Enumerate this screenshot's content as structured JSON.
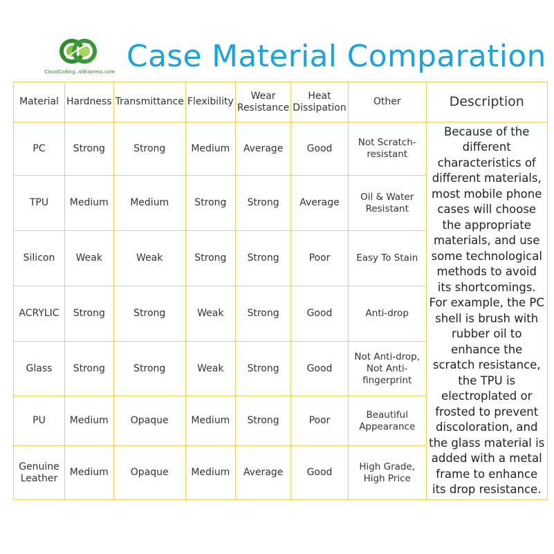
{
  "logo": {
    "text": "CloudCoding..aliExpress.com",
    "colors": {
      "outer": "#2e8b2e",
      "inner": "#8cc63f"
    }
  },
  "title": "Case Material Comparation",
  "colors": {
    "title": "#1aa3dc",
    "grid": "#f0cc5a",
    "text": "#333333"
  },
  "table": {
    "headers": [
      "Material",
      "Hardness",
      "Transmittance",
      "Flexibility",
      "Wear Resistance",
      "Heat Dissipation",
      "Other",
      "Description"
    ],
    "rows": [
      [
        "PC",
        "Strong",
        "Strong",
        "Medium",
        "Average",
        "Good",
        "Not Scratch-resistant"
      ],
      [
        "TPU",
        "Medium",
        "Medium",
        "Strong",
        "Strong",
        "Average",
        "Oil & Water Resistant"
      ],
      [
        "Silicon",
        "Weak",
        "Weak",
        "Strong",
        "Strong",
        "Poor",
        "Easy To Stain"
      ],
      [
        "ACRYLIC",
        "Strong",
        "Strong",
        "Weak",
        "Strong",
        "Good",
        "Anti-drop"
      ],
      [
        "Glass",
        "Strong",
        "Strong",
        "Weak",
        "Strong",
        "Good",
        "Not Anti-drop, Not Anti-fingerprint"
      ],
      [
        "PU",
        "Medium",
        "Opaque",
        "Medium",
        "Strong",
        "Poor",
        "Beautiful Appearance"
      ],
      [
        "Genuine Leather",
        "Medium",
        "Opaque",
        "Medium",
        "Average",
        "Good",
        "High Grade, High Price"
      ]
    ],
    "description": "Because of the different characteristics of different materials, most mobile phone cases will choose the appropriate materials, and use some technological methods to avoid its shortcomings. For example, the PC shell is brush with rubber oil to enhance the scratch resistance, the TPU is electroplated or frosted to prevent discoloration, and the glass material is added with a metal frame to enhance its drop resistance."
  }
}
